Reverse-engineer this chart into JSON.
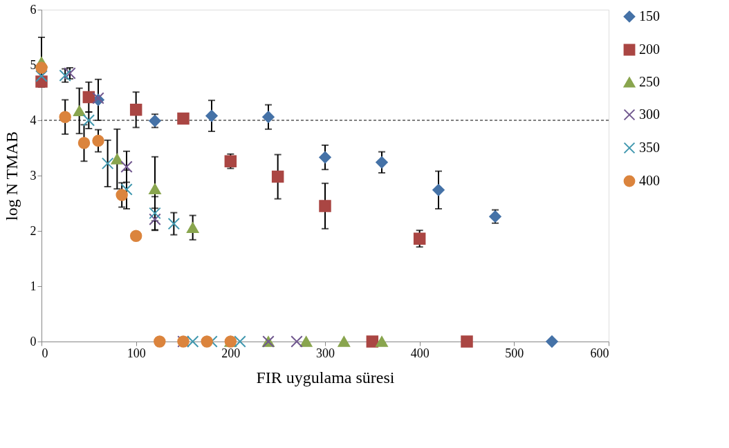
{
  "chart_data": {
    "type": "scatter",
    "xlabel": "FIR uygulama süresi",
    "ylabel": "log N TMAB",
    "xlim": [
      0,
      600
    ],
    "xticks": [
      0,
      100,
      200,
      300,
      400,
      500,
      600
    ],
    "ylim": [
      0,
      6
    ],
    "yticks": [
      0,
      1,
      2,
      3,
      4,
      5,
      6
    ],
    "grid": false,
    "legend": "right",
    "ref_lines": [
      {
        "axis": "y",
        "value": 4,
        "color": "#000000",
        "line_style": "dashed"
      }
    ],
    "series": [
      {
        "name": "150",
        "color": "#4572a7",
        "marker": "diamond",
        "x": [
          60,
          120,
          180,
          240,
          300,
          360,
          420,
          480,
          540
        ],
        "values": [
          4.37,
          3.99,
          4.08,
          4.06,
          3.33,
          3.24,
          2.74,
          2.26,
          0
        ],
        "errors": [
          0.37,
          0.12,
          0.28,
          0.22,
          0.22,
          0.19,
          0.34,
          0.12,
          null
        ]
      },
      {
        "name": "200",
        "color": "#aa4643",
        "marker": "square",
        "x": [
          0,
          50,
          100,
          150,
          200,
          250,
          300,
          350,
          400,
          450
        ],
        "values": [
          4.7,
          4.42,
          4.19,
          4.03,
          3.26,
          2.98,
          2.45,
          0,
          1.86,
          0
        ],
        "errors": [
          null,
          0.27,
          0.32,
          null,
          0.13,
          0.4,
          0.41,
          null,
          0.15,
          null
        ]
      },
      {
        "name": "250",
        "color": "#89a54e",
        "marker": "triangle",
        "x": [
          0,
          40,
          80,
          120,
          160,
          200,
          240,
          280,
          320,
          360
        ],
        "values": [
          5.05,
          4.17,
          3.3,
          2.76,
          2.06,
          0,
          0,
          0,
          0,
          0
        ],
        "errors": [
          0.45,
          0.41,
          0.54,
          0.58,
          0.22,
          null,
          null,
          null,
          null,
          null
        ]
      },
      {
        "name": "300",
        "color": "#71588f",
        "marker": "cross",
        "x": [
          0,
          30,
          60,
          90,
          120,
          150,
          240,
          270
        ],
        "values": [
          4.8,
          4.85,
          4.4,
          3.16,
          2.21,
          0,
          0,
          0
        ],
        "errors": [
          null,
          0.1,
          null,
          0.28,
          0.2,
          null,
          null,
          null
        ]
      },
      {
        "name": "350",
        "color": "#4198af",
        "marker": "cross",
        "x": [
          0,
          25,
          50,
          70,
          90,
          120,
          140,
          160,
          180,
          210
        ],
        "values": [
          4.8,
          4.81,
          4.0,
          3.22,
          2.75,
          2.32,
          2.13,
          0,
          0,
          0
        ],
        "errors": [
          null,
          0.12,
          0.15,
          0.42,
          0.35,
          0.3,
          0.2,
          null,
          null,
          null
        ]
      },
      {
        "name": "400",
        "color": "#db843d",
        "marker": "circle",
        "x": [
          0,
          25,
          45,
          60,
          85,
          100,
          125,
          150,
          175,
          200
        ],
        "values": [
          4.95,
          4.06,
          3.59,
          3.63,
          2.65,
          1.91,
          0,
          0,
          0,
          0
        ],
        "errors": [
          null,
          0.31,
          0.33,
          0.2,
          0.22,
          null,
          null,
          null,
          null,
          null
        ]
      }
    ]
  }
}
